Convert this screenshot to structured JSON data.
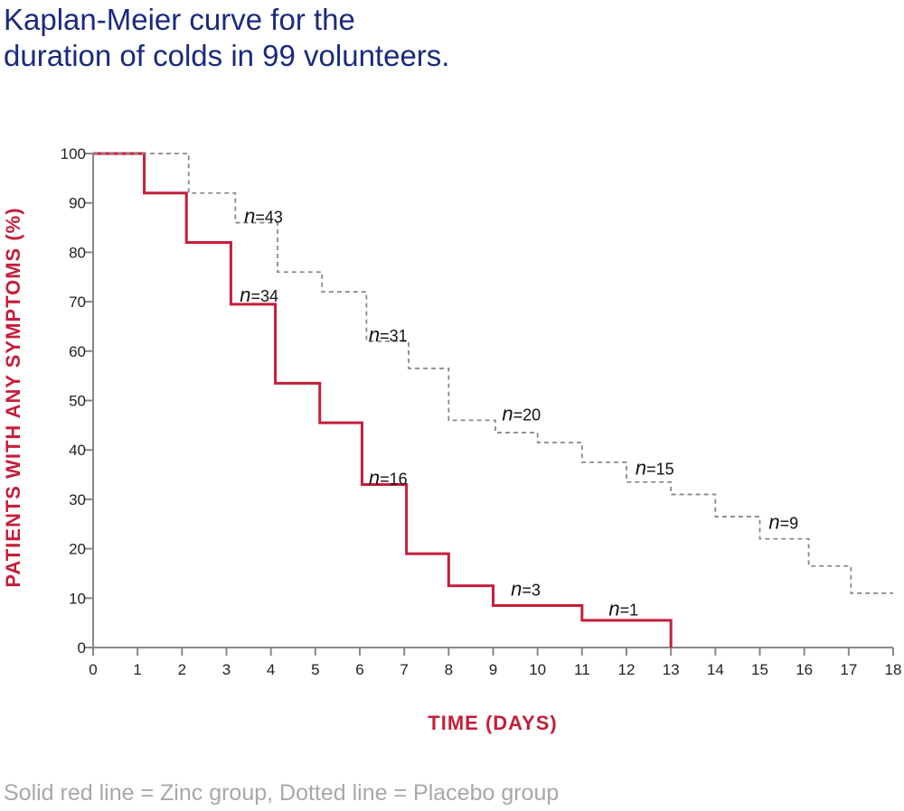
{
  "title_line1": "Kaplan-Meier curve for the",
  "title_line2": "duration of colds in 99 volunteers.",
  "footer": "Solid red line = Zinc group, Dotted line = Placebo group",
  "chart_data": {
    "type": "line",
    "title": "Kaplan-Meier curve for the duration of colds in 99 volunteers.",
    "xlabel": "TIME (DAYS)",
    "ylabel": "PATIENTS WITH ANY SYMPTOMS (%)",
    "xlim": [
      0,
      18
    ],
    "ylim": [
      0,
      100
    ],
    "xticks": [
      0,
      1,
      2,
      3,
      4,
      5,
      6,
      7,
      8,
      9,
      10,
      11,
      12,
      13,
      14,
      15,
      16,
      17,
      18
    ],
    "yticks": [
      0,
      10,
      20,
      30,
      40,
      50,
      60,
      70,
      80,
      90,
      100
    ],
    "colors": {
      "zinc": "#c41e3a",
      "placebo": "#8a8a8a",
      "title": "#1b2a7c"
    },
    "series": [
      {
        "name": "Zinc group",
        "style": "solid",
        "steps_x": [
          0,
          1.15,
          2.1,
          3.1,
          4.1,
          5.1,
          6.05,
          7.05,
          8,
          9,
          11,
          13
        ],
        "steps_y": [
          100,
          92,
          82,
          69.5,
          53.5,
          45.5,
          33,
          19,
          12.5,
          8.5,
          5.5,
          0
        ]
      },
      {
        "name": "Placebo group",
        "style": "dotted",
        "steps_x": [
          0,
          2.15,
          3.2,
          4.15,
          5.15,
          6.15,
          7.1,
          8,
          9.05,
          10,
          11,
          12,
          13,
          14,
          15,
          16.1,
          17.05,
          18
        ],
        "steps_y": [
          100,
          92,
          86,
          76,
          72,
          62,
          56.5,
          46,
          43.5,
          41.5,
          37.5,
          33.5,
          31,
          26.5,
          22,
          16.5,
          11,
          11
        ]
      }
    ],
    "annotations": [
      {
        "text": "=43",
        "x": 3.4,
        "y": 86
      },
      {
        "text": "=34",
        "x": 3.3,
        "y": 70
      },
      {
        "text": "=31",
        "x": 6.2,
        "y": 62
      },
      {
        "text": "=20",
        "x": 9.2,
        "y": 46
      },
      {
        "text": "=16",
        "x": 6.2,
        "y": 33
      },
      {
        "text": "=15",
        "x": 12.2,
        "y": 35
      },
      {
        "text": "=9",
        "x": 15.2,
        "y": 24
      },
      {
        "text": "=3",
        "x": 9.4,
        "y": 10.5
      },
      {
        "text": "=1",
        "x": 11.6,
        "y": 6.5
      }
    ]
  }
}
